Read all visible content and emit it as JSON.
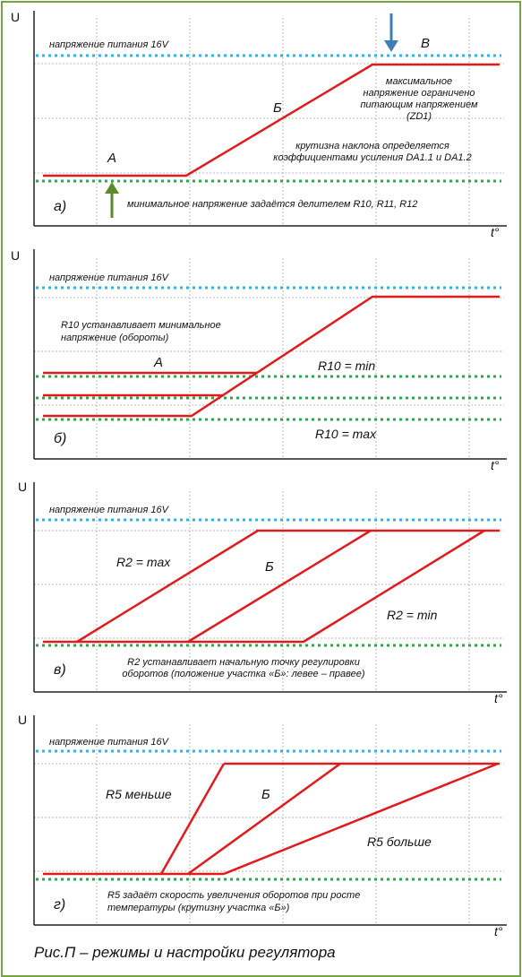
{
  "caption": "Рис.П – режимы и настройки регулятора",
  "colors": {
    "border": "#76a443",
    "supply_line": "#2bb5e8",
    "min_line": "#2aa84a",
    "curve": "#e01b1b",
    "grid": "#b8b8b8",
    "arrow_down": "#3d7fb5",
    "arrow_up": "#5b8a2a"
  },
  "panels": [
    {
      "id": "a",
      "axis_y": "U",
      "axis_x": "t°",
      "label": "а)",
      "supply_label": "напряжение питания 16V",
      "texts": {
        "A": "А",
        "B": "Б",
        "V": "В",
        "max_1": "максимальное",
        "max_2": "напряжение ограничено",
        "max_3": "питающим напряжением",
        "max_4": "(ZD1)",
        "slope_1": "крутизна наклона определяется",
        "slope_2": "коэффициентами усиления DA1.1 и DA1.2",
        "min": "минимальное напряжение задаётся делителем R10, R11, R12"
      }
    },
    {
      "id": "b",
      "axis_y": "U",
      "axis_x": "t°",
      "label": "б)",
      "supply_label": "напряжение питания 16V",
      "texts": {
        "r10_1": "R10 устанавливает минимальное",
        "r10_2": "напряжение (обороты)",
        "A": "А",
        "r10_min": "R10 = min",
        "r10_max": "R10 = max"
      }
    },
    {
      "id": "v",
      "axis_y": "U",
      "axis_x": "t°",
      "label": "в)",
      "supply_label": "напряжение питания 16V",
      "texts": {
        "r2_max": "R2 = max",
        "B": "Б",
        "r2_min": "R2 = min",
        "note_1": "R2 устанавливает начальную точку регулировки",
        "note_2": "оборотов (положение участка «Б»: левее – правее)"
      }
    },
    {
      "id": "g",
      "axis_y": "U",
      "axis_x": "t°",
      "label": "г)",
      "supply_label": "напряжение питания 16V",
      "texts": {
        "r5_less": "R5  меньше",
        "B": "Б",
        "r5_more": "R5  больше",
        "note_1": "R5 задаёт скорость увеличения оборотов при росте",
        "note_2": "температуры (крутизну участка «Б»)"
      }
    }
  ]
}
